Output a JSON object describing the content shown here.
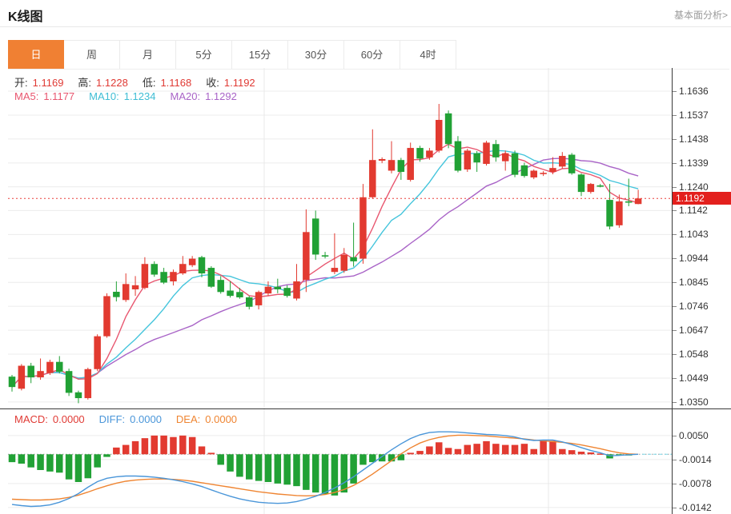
{
  "header": {
    "title": "K线图",
    "link_label": "基本面分析>"
  },
  "tabs": {
    "items": [
      "日",
      "周",
      "月",
      "5分",
      "15分",
      "30分",
      "60分",
      "4时"
    ],
    "active_index": 0
  },
  "legend": {
    "ohlc": [
      {
        "label": "开:",
        "value": "1.1169"
      },
      {
        "label": "高:",
        "value": "1.1228"
      },
      {
        "label": "低:",
        "value": "1.1168"
      },
      {
        "label": "收:",
        "value": "1.1192"
      }
    ],
    "ma": [
      {
        "label": "MA5:",
        "value": "1.1177"
      },
      {
        "label": "MA10:",
        "value": "1.1234"
      },
      {
        "label": "MA20:",
        "value": "1.1292"
      }
    ]
  },
  "macd_legend": [
    {
      "label": "MACD:",
      "value": "0.0000"
    },
    {
      "label": "DIFF:",
      "value": "0.0000"
    },
    {
      "label": "DEA:",
      "value": "0.0000"
    }
  ],
  "price_tag": {
    "value": "1.1192"
  },
  "colors": {
    "up": "#e23a30",
    "down": "#21a135",
    "ma5": "#e8566f",
    "ma10": "#45c5dc",
    "ma20": "#a964c7",
    "diff": "#4a96d9",
    "dea": "#ef8532",
    "price_line": "#e9413d",
    "price_tag_bg": "#e3201d",
    "grid": "#ececec",
    "active_tab": "#f08033"
  },
  "chart_data": {
    "type": "candlestick",
    "title": "K线图 日线 (daily K-line with MA5/MA10/MA20 and MACD)",
    "y_axis": {
      "ticks": [
        "1.1636",
        "1.1537",
        "1.1438",
        "1.1339",
        "1.1240",
        "1.1142",
        "1.1043",
        "1.0944",
        "1.0845",
        "1.0746",
        "1.0647",
        "1.0548",
        "1.0449",
        "1.0350"
      ],
      "top_value": 1.1636,
      "bottom_value": 1.035,
      "grid": true,
      "legend_position": "top-left"
    },
    "current_price": 1.1192,
    "ohlc_display": {
      "open": 1.1169,
      "high": 1.1228,
      "low": 1.1168,
      "close": 1.1192
    },
    "ma_windows": [
      5,
      10,
      20
    ],
    "ma_display": {
      "ma5": 1.1177,
      "ma10": 1.1234,
      "ma20": 1.1292
    },
    "candles": [
      [
        1.0455,
        1.0462,
        1.0393,
        1.0412
      ],
      [
        1.0405,
        1.0507,
        1.0398,
        1.05
      ],
      [
        1.05,
        1.0512,
        1.0428,
        1.0452
      ],
      [
        1.0452,
        1.053,
        1.0442,
        1.0478
      ],
      [
        1.047,
        1.0525,
        1.0462,
        1.0516
      ],
      [
        1.0516,
        1.054,
        1.0468,
        1.0475
      ],
      [
        1.0478,
        1.0488,
        1.0375,
        1.0388
      ],
      [
        1.039,
        1.0397,
        1.0345,
        1.0366
      ],
      [
        1.0366,
        1.0492,
        1.036,
        1.0486
      ],
      [
        1.0486,
        1.063,
        1.0478,
        1.0622
      ],
      [
        1.0622,
        1.08,
        1.0616,
        1.0788
      ],
      [
        1.0806,
        1.0849,
        1.0766,
        1.0784
      ],
      [
        1.0772,
        1.0882,
        1.0764,
        1.0838
      ],
      [
        1.0816,
        1.0871,
        1.0789,
        1.0833
      ],
      [
        1.0822,
        1.0949,
        1.0816,
        1.0921
      ],
      [
        1.0921,
        1.0932,
        1.0868,
        1.0877
      ],
      [
        1.0888,
        1.0905,
        1.0838,
        1.0844
      ],
      [
        1.0849,
        1.0898,
        1.0832,
        1.0888
      ],
      [
        1.0882,
        1.0954,
        1.0876,
        1.0921
      ],
      [
        1.0916,
        1.0954,
        1.0908,
        1.0943
      ],
      [
        1.0949,
        1.0955,
        1.0866,
        1.0882
      ],
      [
        1.0905,
        1.0912,
        1.0822,
        1.0827
      ],
      [
        1.0855,
        1.0871,
        1.0798,
        1.0805
      ],
      [
        1.0811,
        1.0849,
        1.0782,
        1.0789
      ],
      [
        1.0805,
        1.0822,
        1.0777,
        1.0783
      ],
      [
        1.0783,
        1.0789,
        1.0733,
        1.0744
      ],
      [
        1.075,
        1.0811,
        1.0733,
        1.0805
      ],
      [
        1.0799,
        1.0849,
        1.0789,
        1.0827
      ],
      [
        1.0827,
        1.086,
        1.08,
        1.0816
      ],
      [
        1.0822,
        1.0833,
        1.0782,
        1.0789
      ],
      [
        1.0778,
        1.0921,
        1.077,
        1.0849
      ],
      [
        1.0855,
        1.1147,
        1.0805,
        1.1053
      ],
      [
        1.1109,
        1.1142,
        1.0938,
        1.096
      ],
      [
        1.0957,
        1.0971,
        1.0944,
        1.0952
      ],
      [
        1.0888,
        1.1048,
        1.0879,
        1.0905
      ],
      [
        1.0893,
        1.0987,
        1.0884,
        1.0959
      ],
      [
        1.0949,
        1.1092,
        1.091,
        1.0932
      ],
      [
        1.0943,
        1.1252,
        1.0922,
        1.1197
      ],
      [
        1.1197,
        1.1478,
        1.119,
        1.1351
      ],
      [
        1.1348,
        1.1362,
        1.1338,
        1.1355
      ],
      [
        1.1307,
        1.1429,
        1.1296,
        1.1351
      ],
      [
        1.1351,
        1.136,
        1.1269,
        1.1302
      ],
      [
        1.1269,
        1.1423,
        1.1262,
        1.1401
      ],
      [
        1.1401,
        1.141,
        1.1344,
        1.1357
      ],
      [
        1.1362,
        1.1401,
        1.1352,
        1.139
      ],
      [
        1.139,
        1.1583,
        1.1382,
        1.1517
      ],
      [
        1.1544,
        1.1556,
        1.14,
        1.1417
      ],
      [
        1.1429,
        1.145,
        1.13,
        1.1307
      ],
      [
        1.1312,
        1.1398,
        1.1302,
        1.139
      ],
      [
        1.1379,
        1.1388,
        1.1302,
        1.1341
      ],
      [
        1.1335,
        1.143,
        1.1328,
        1.1423
      ],
      [
        1.1417,
        1.1434,
        1.1344,
        1.1362
      ],
      [
        1.1346,
        1.139,
        1.1307,
        1.1379
      ],
      [
        1.1379,
        1.139,
        1.128,
        1.129
      ],
      [
        1.1329,
        1.134,
        1.1278,
        1.1285
      ],
      [
        1.1279,
        1.1312,
        1.1272,
        1.1307
      ],
      [
        1.1295,
        1.1305,
        1.1285,
        1.1298
      ],
      [
        1.1302,
        1.1363,
        1.1292,
        1.1318
      ],
      [
        1.1324,
        1.1384,
        1.1316,
        1.1368
      ],
      [
        1.1373,
        1.138,
        1.129,
        1.1296
      ],
      [
        1.1291,
        1.1296,
        1.1202,
        1.1219
      ],
      [
        1.1219,
        1.1256,
        1.1212,
        1.1252
      ],
      [
        1.1246,
        1.1252,
        1.1238,
        1.1243
      ],
      [
        1.1186,
        1.1252,
        1.1064,
        1.1076
      ],
      [
        1.1081,
        1.1208,
        1.1071,
        1.118
      ],
      [
        1.118,
        1.1274,
        1.116,
        1.1175
      ],
      [
        1.1169,
        1.1228,
        1.1168,
        1.1192
      ]
    ],
    "macd_panel": {
      "y_ticks": [
        "0.0050",
        "-0.0014",
        "-0.0078",
        "-0.0142"
      ],
      "zero_value": 0.0,
      "histogram": [
        -0.0021,
        -0.0025,
        -0.0035,
        -0.0042,
        -0.0046,
        -0.0049,
        -0.0067,
        -0.0074,
        -0.0064,
        -0.0035,
        -0.0007,
        0.0018,
        0.0025,
        0.0035,
        0.0043,
        0.005,
        0.005,
        0.0046,
        0.005,
        0.0046,
        0.0021,
        0.0004,
        -0.0028,
        -0.0046,
        -0.006,
        -0.0067,
        -0.0071,
        -0.0074,
        -0.0078,
        -0.0081,
        -0.0085,
        -0.0095,
        -0.0102,
        -0.0106,
        -0.011,
        -0.0102,
        -0.0078,
        -0.0028,
        -0.0021,
        -0.0019,
        -0.0019,
        -0.0016,
        0.0004,
        0.0009,
        0.0021,
        0.0032,
        0.0017,
        0.0014,
        0.0025,
        0.0028,
        0.0035,
        0.0028,
        0.0025,
        0.0025,
        0.0028,
        0.0014,
        0.0038,
        0.0036,
        0.0014,
        0.0011,
        0.0007,
        0.0005,
        0.0002,
        -0.0011,
        -0.0003,
        -0.0001,
        0.0
      ],
      "diff": [
        -0.0134,
        -0.0137,
        -0.0139,
        -0.0138,
        -0.0135,
        -0.0128,
        -0.0118,
        -0.0105,
        -0.0088,
        -0.0073,
        -0.0064,
        -0.006,
        -0.0058,
        -0.0058,
        -0.0059,
        -0.0061,
        -0.0064,
        -0.0068,
        -0.0073,
        -0.0079,
        -0.0086,
        -0.0095,
        -0.0104,
        -0.0112,
        -0.0119,
        -0.0124,
        -0.0128,
        -0.013,
        -0.0131,
        -0.013,
        -0.0126,
        -0.012,
        -0.0112,
        -0.0102,
        -0.009,
        -0.0076,
        -0.006,
        -0.0042,
        -0.0024,
        -0.0006,
        0.0012,
        0.0028,
        0.0042,
        0.0052,
        0.0058,
        0.006,
        0.006,
        0.0059,
        0.0057,
        0.0055,
        0.0053,
        0.0052,
        0.005,
        0.0046,
        0.004,
        0.0037,
        0.0038,
        0.0038,
        0.0033,
        0.0026,
        0.0018,
        0.001,
        0.0004,
        -0.0004,
        -0.0003,
        -0.0001,
        0.0
      ],
      "dea": [
        -0.012,
        -0.0121,
        -0.0122,
        -0.0122,
        -0.0121,
        -0.0119,
        -0.0115,
        -0.0109,
        -0.0101,
        -0.0092,
        -0.0084,
        -0.0077,
        -0.0072,
        -0.0069,
        -0.0067,
        -0.0066,
        -0.0066,
        -0.0067,
        -0.0069,
        -0.0072,
        -0.0076,
        -0.008,
        -0.0084,
        -0.0088,
        -0.0092,
        -0.0096,
        -0.01,
        -0.0103,
        -0.0106,
        -0.0108,
        -0.011,
        -0.0111,
        -0.011,
        -0.0107,
        -0.0102,
        -0.0094,
        -0.0083,
        -0.0069,
        -0.0053,
        -0.0035,
        -0.0017,
        0.0001,
        0.0017,
        0.003,
        0.0039,
        0.0045,
        0.0049,
        0.0051,
        0.0051,
        0.005,
        0.0049,
        0.0047,
        0.0045,
        0.0043,
        0.0041,
        0.0038,
        0.0036,
        0.0034,
        0.0032,
        0.0029,
        0.0025,
        0.002,
        0.0015,
        0.0009,
        0.0004,
        0.0001,
        0.0
      ]
    }
  }
}
